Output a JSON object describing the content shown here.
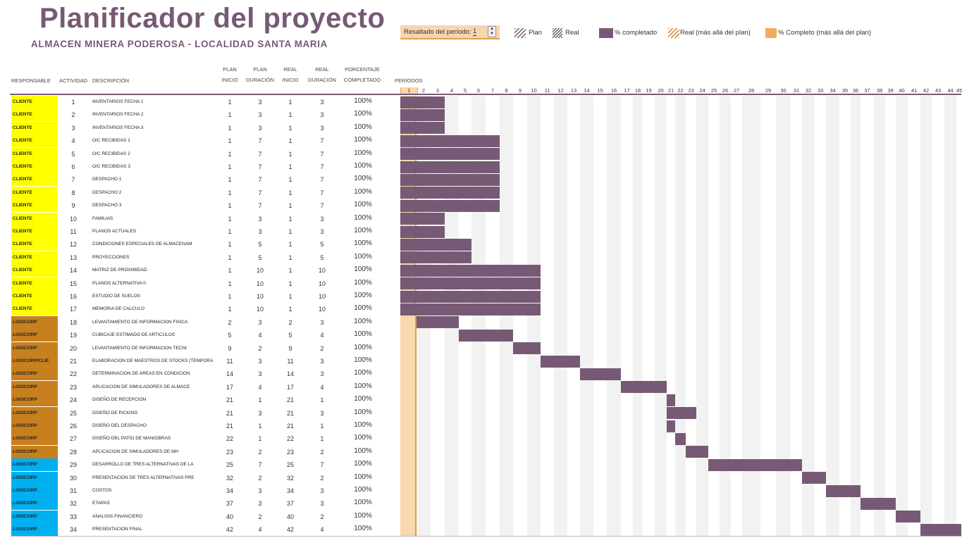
{
  "header": {
    "title": "Planificador del proyecto",
    "subtitle": "ALMACEN MINERA PODEROSA - LOCALIDAD SANTA MARIA"
  },
  "period_control": {
    "label": "Resaltado del período:",
    "value": "1"
  },
  "legend": [
    {
      "label": "Plan",
      "swatch": "hatch-purple"
    },
    {
      "label": "Real",
      "swatch": "hatch-purple-dense"
    },
    {
      "label": "% completado",
      "swatch": "solid-purple"
    },
    {
      "label": "Real (más allá del plan)",
      "swatch": "hatch-orange"
    },
    {
      "label": "% Completo (más allá del plan)",
      "swatch": "solid-orange"
    }
  ],
  "columns": {
    "responsable": "RESPONSABLE",
    "actividad": "ACTIVIDAD",
    "descripcion": "DESCRIPCIÓN",
    "plan_inicio_1": "PLAN",
    "plan_inicio_2": "INICIO",
    "plan_duracion_1": "PLAN",
    "plan_duracion_2": "DURACIÓN",
    "real_inicio_1": "REAL",
    "real_inicio_2": "INICIO",
    "real_duracion_1": "REAL",
    "real_duracion_2": "DURACIÓN",
    "porcentaje_1": "PORCENTAJE",
    "porcentaje_2": "COMPLETADO",
    "periodos": "PERÍODOS"
  },
  "periods": [
    1,
    2,
    3,
    4,
    5,
    6,
    7,
    8,
    9,
    10,
    11,
    12,
    13,
    14,
    15,
    16,
    17,
    18,
    19,
    20,
    21,
    22,
    23,
    24,
    25,
    26,
    27,
    28,
    29,
    30,
    31,
    32,
    33,
    34,
    35,
    36,
    37,
    38,
    39,
    40,
    41,
    42,
    43,
    44,
    45
  ],
  "highlight_period": 1,
  "colors": {
    "accent": "#765a75",
    "cliente": "#ffff00",
    "logicorp": "#c8801e",
    "logicorp_blue": "#00b0f0",
    "highlight": "#fad7ac"
  },
  "tasks": [
    {
      "responsable": "CLIENTE",
      "group": "cliente",
      "actividad": "1",
      "descripcion": "INVENTARIOS FECHA 1",
      "plan_inicio": "1",
      "plan_duracion": "3",
      "real_inicio": "1",
      "real_duracion": "3",
      "pct": "100%"
    },
    {
      "responsable": "CLIENTE",
      "group": "cliente",
      "actividad": "2",
      "descripcion": "INVENTARIOS FECHA 2",
      "plan_inicio": "1",
      "plan_duracion": "3",
      "real_inicio": "1",
      "real_duracion": "3",
      "pct": "100%"
    },
    {
      "responsable": "CLIENTE",
      "group": "cliente",
      "actividad": "3",
      "descripcion": "INVENTARIOS FECHA 3",
      "plan_inicio": "1",
      "plan_duracion": "3",
      "real_inicio": "1",
      "real_duracion": "3",
      "pct": "100%"
    },
    {
      "responsable": "CLIENTE",
      "group": "cliente",
      "actividad": "4",
      "descripcion": "O/C RECIBIDAS 1",
      "plan_inicio": "1",
      "plan_duracion": "7",
      "real_inicio": "1",
      "real_duracion": "7",
      "pct": "100%"
    },
    {
      "responsable": "CLIENTE",
      "group": "cliente",
      "actividad": "5",
      "descripcion": "O/C RECIBIDAS 2",
      "plan_inicio": "1",
      "plan_duracion": "7",
      "real_inicio": "1",
      "real_duracion": "7",
      "pct": "100%"
    },
    {
      "responsable": "CLIENTE",
      "group": "cliente",
      "actividad": "6",
      "descripcion": "O/C RECIBIDAS 3",
      "plan_inicio": "1",
      "plan_duracion": "7",
      "real_inicio": "1",
      "real_duracion": "7",
      "pct": "100%"
    },
    {
      "responsable": "CLIENTE",
      "group": "cliente",
      "actividad": "7",
      "descripcion": "DESPACHO 1",
      "plan_inicio": "1",
      "plan_duracion": "7",
      "real_inicio": "1",
      "real_duracion": "7",
      "pct": "100%"
    },
    {
      "responsable": "CLIENTE",
      "group": "cliente",
      "actividad": "8",
      "descripcion": "DESPACHO 2",
      "plan_inicio": "1",
      "plan_duracion": "7",
      "real_inicio": "1",
      "real_duracion": "7",
      "pct": "100%"
    },
    {
      "responsable": "CLIENTE",
      "group": "cliente",
      "actividad": "9",
      "descripcion": "DESPACHO 3",
      "plan_inicio": "1",
      "plan_duracion": "7",
      "real_inicio": "1",
      "real_duracion": "7",
      "pct": "100%"
    },
    {
      "responsable": "CLIENTE",
      "group": "cliente",
      "actividad": "10",
      "descripcion": "FAMILIAS",
      "plan_inicio": "1",
      "plan_duracion": "3",
      "real_inicio": "1",
      "real_duracion": "3",
      "pct": "100%"
    },
    {
      "responsable": "CLIENTE",
      "group": "cliente",
      "actividad": "11",
      "descripcion": "PLANOS ACTUALES",
      "plan_inicio": "1",
      "plan_duracion": "3",
      "real_inicio": "1",
      "real_duracion": "3",
      "pct": "100%"
    },
    {
      "responsable": "CLIENTE",
      "group": "cliente",
      "actividad": "12",
      "descripcion": "CONDICIONES ESPECIALES DE ALMACENAM",
      "plan_inicio": "1",
      "plan_duracion": "5",
      "real_inicio": "1",
      "real_duracion": "5",
      "pct": "100%"
    },
    {
      "responsable": "CLIENTE",
      "group": "cliente",
      "actividad": "13",
      "descripcion": "PROYECCIONES",
      "plan_inicio": "1",
      "plan_duracion": "5",
      "real_inicio": "1",
      "real_duracion": "5",
      "pct": "100%"
    },
    {
      "responsable": "CLIENTE",
      "group": "cliente",
      "actividad": "14",
      "descripcion": "MATRIZ DE PROXIMIDAD",
      "plan_inicio": "1",
      "plan_duracion": "10",
      "real_inicio": "1",
      "real_duracion": "10",
      "pct": "100%"
    },
    {
      "responsable": "CLIENTE",
      "group": "cliente",
      "actividad": "15",
      "descripcion": "PLANOS ALTERNATIVA 0",
      "plan_inicio": "1",
      "plan_duracion": "10",
      "real_inicio": "1",
      "real_duracion": "10",
      "pct": "100%"
    },
    {
      "responsable": "CLIENTE",
      "group": "cliente",
      "actividad": "16",
      "descripcion": "ESTUDIO DE SUELOS",
      "plan_inicio": "1",
      "plan_duracion": "10",
      "real_inicio": "1",
      "real_duracion": "10",
      "pct": "100%"
    },
    {
      "responsable": "CLIENTE",
      "group": "cliente",
      "actividad": "17",
      "descripcion": "MEMORIA DE CALCULO",
      "plan_inicio": "1",
      "plan_duracion": "10",
      "real_inicio": "1",
      "real_duracion": "10",
      "pct": "100%"
    },
    {
      "responsable": "LOGICORP",
      "group": "logicorp",
      "actividad": "18",
      "descripcion": "LEVANTAMIENTO DE INFORMACION FISICA",
      "plan_inicio": "2",
      "plan_duracion": "3",
      "real_inicio": "2",
      "real_duracion": "3",
      "pct": "100%"
    },
    {
      "responsable": "LOGICORP",
      "group": "logicorp",
      "actividad": "19",
      "descripcion": "CUBICAJE ESTIMADO DE ARTICULOS",
      "plan_inicio": "5",
      "plan_duracion": "4",
      "real_inicio": "5",
      "real_duracion": "4",
      "pct": "100%"
    },
    {
      "responsable": "LOGICORP",
      "group": "logicorp",
      "actividad": "20",
      "descripcion": "LEVANTAMIENTO DE INFORMACION TECNI",
      "plan_inicio": "9",
      "plan_duracion": "2",
      "real_inicio": "9",
      "real_duracion": "2",
      "pct": "100%"
    },
    {
      "responsable": "LOGICORP/CLIE",
      "group": "logicorp",
      "actividad": "21",
      "descripcion": "ELABORACION DE MAESTROS DE STOCKS (TEMPORA",
      "plan_inicio": "11",
      "plan_duracion": "3",
      "real_inicio": "11",
      "real_duracion": "3",
      "pct": "100%"
    },
    {
      "responsable": "LOGICORP",
      "group": "logicorp",
      "actividad": "22",
      "descripcion": "DETERMINACION DE AREAS EN CONDICION",
      "plan_inicio": "14",
      "plan_duracion": "3",
      "real_inicio": "14",
      "real_duracion": "3",
      "pct": "100%"
    },
    {
      "responsable": "LOGICORP",
      "group": "logicorp",
      "actividad": "23",
      "descripcion": "APLICACION DE SIMULADORES DE ALMACE",
      "plan_inicio": "17",
      "plan_duracion": "4",
      "real_inicio": "17",
      "real_duracion": "4",
      "pct": "100%"
    },
    {
      "responsable": "LOGICORP",
      "group": "logicorp",
      "actividad": "24",
      "descripcion": "DISEÑO DE RECEPCION",
      "plan_inicio": "21",
      "plan_duracion": "1",
      "real_inicio": "21",
      "real_duracion": "1",
      "pct": "100%"
    },
    {
      "responsable": "LOGICORP",
      "group": "logicorp",
      "actividad": "25",
      "descripcion": "DISEÑO DE PICKING",
      "plan_inicio": "21",
      "plan_duracion": "3",
      "real_inicio": "21",
      "real_duracion": "3",
      "pct": "100%"
    },
    {
      "responsable": "LOGICORP",
      "group": "logicorp",
      "actividad": "26",
      "descripcion": "DISEÑO DEL DESPACHO",
      "plan_inicio": "21",
      "plan_duracion": "1",
      "real_inicio": "21",
      "real_duracion": "1",
      "pct": "100%"
    },
    {
      "responsable": "LOGICORP",
      "group": "logicorp",
      "actividad": "27",
      "descripcion": "DISEÑO DEL PATIO DE MANIOBRAS",
      "plan_inicio": "22",
      "plan_duracion": "1",
      "real_inicio": "22",
      "real_duracion": "1",
      "pct": "100%"
    },
    {
      "responsable": "LOGICORP",
      "group": "logicorp",
      "actividad": "28",
      "descripcion": "APLICACION DE SIMULADORES DE MH",
      "plan_inicio": "23",
      "plan_duracion": "2",
      "real_inicio": "23",
      "real_duracion": "2",
      "pct": "100%"
    },
    {
      "responsable": "LOGICORP",
      "group": "logicorp_blue",
      "actividad": "29",
      "descripcion": "DESARROLLO DE TRES ALTERNATIVAS DE LA",
      "plan_inicio": "25",
      "plan_duracion": "7",
      "real_inicio": "25",
      "real_duracion": "7",
      "pct": "100%"
    },
    {
      "responsable": "LOGICORP",
      "group": "logicorp_blue",
      "actividad": "30",
      "descripcion": "PRESENTACION DE TRES ALTERNATIVAS PRE",
      "plan_inicio": "32",
      "plan_duracion": "2",
      "real_inicio": "32",
      "real_duracion": "2",
      "pct": "100%"
    },
    {
      "responsable": "LOGICORP",
      "group": "logicorp_blue",
      "actividad": "31",
      "descripcion": "COSTOS",
      "plan_inicio": "34",
      "plan_duracion": "3",
      "real_inicio": "34",
      "real_duracion": "3",
      "pct": "100%"
    },
    {
      "responsable": "LOGICORP",
      "group": "logicorp_blue",
      "actividad": "32",
      "descripcion": "ETAPAS",
      "plan_inicio": "37",
      "plan_duracion": "3",
      "real_inicio": "37",
      "real_duracion": "3",
      "pct": "100%"
    },
    {
      "responsable": "LOGICORP",
      "group": "logicorp_blue",
      "actividad": "33",
      "descripcion": "ANALISIS FINANCIERO",
      "plan_inicio": "40",
      "plan_duracion": "2",
      "real_inicio": "40",
      "real_duracion": "2",
      "pct": "100%"
    },
    {
      "responsable": "LOGICORP",
      "group": "logicorp_blue",
      "actividad": "34",
      "descripcion": "PRESENTACION FINAL",
      "plan_inicio": "42",
      "plan_duracion": "4",
      "real_inicio": "42",
      "real_duracion": "4",
      "pct": "100%"
    }
  ]
}
